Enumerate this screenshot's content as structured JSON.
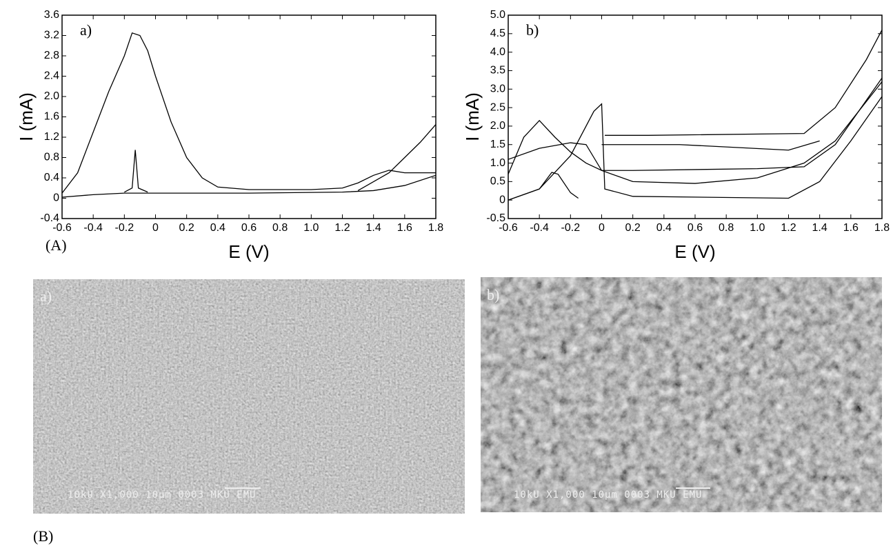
{
  "figure_labels": [
    "(A)",
    "(B)"
  ],
  "chart_data": [
    {
      "type": "line",
      "panel_label": "a)",
      "xlabel": "E (V)",
      "ylabel": "I (mA)",
      "color": "#000000",
      "grid": false,
      "xlim": [
        -0.6,
        1.8
      ],
      "ylim": [
        -0.4,
        3.6
      ],
      "xticks": [
        -0.6,
        -0.4,
        -0.2,
        0,
        0.2,
        0.4,
        0.6,
        0.8,
        {
          "value": 1,
          "label": "1.0"
        },
        1.2,
        1.4,
        1.6,
        1.8
      ],
      "yticks": [
        -0.4,
        0,
        0.4,
        0.8,
        1.2,
        1.6,
        {
          "value": 2,
          "label": "2.0"
        },
        2.4,
        2.8,
        3.2,
        3.6
      ],
      "series": [
        {
          "x": [
            -0.6,
            -0.5,
            -0.4,
            -0.3,
            -0.2,
            -0.15,
            -0.1,
            -0.05,
            0,
            0.1,
            0.2,
            0.3,
            0.4,
            0.6,
            1.0,
            1.2,
            1.3,
            1.4,
            1.5,
            1.6,
            1.7,
            1.8
          ],
          "values": [
            0.1,
            0.5,
            1.3,
            2.1,
            2.8,
            3.25,
            3.2,
            2.9,
            2.4,
            1.5,
            0.8,
            0.4,
            0.22,
            0.17,
            0.17,
            0.2,
            0.3,
            0.45,
            0.55,
            0.5,
            0.5,
            0.5
          ]
        },
        {
          "x": [
            -0.6,
            -0.4,
            -0.2,
            0,
            0.6,
            1.2,
            1.4,
            1.6,
            1.8
          ],
          "values": [
            0.02,
            0.07,
            0.1,
            0.1,
            0.1,
            0.12,
            0.15,
            0.25,
            0.45
          ]
        },
        {
          "x": [
            -0.2,
            -0.15,
            -0.13,
            -0.11,
            -0.05
          ],
          "values": [
            0.12,
            0.2,
            0.95,
            0.2,
            0.12
          ]
        },
        {
          "x": [
            1.3,
            1.5,
            1.6,
            1.7,
            1.8
          ],
          "values": [
            0.15,
            0.5,
            0.8,
            1.1,
            1.45
          ]
        }
      ]
    },
    {
      "type": "line",
      "panel_label": "b)",
      "xlabel": "E (V)",
      "ylabel": "I (mA)",
      "color": "#000000",
      "grid": false,
      "xlim": [
        -0.6,
        1.8
      ],
      "ylim": [
        -0.5,
        5
      ],
      "xticks": [
        -0.6,
        -0.4,
        -0.2,
        0,
        0.2,
        0.4,
        0.6,
        0.8,
        {
          "value": 1,
          "label": "1.0"
        },
        1.2,
        1.4,
        1.6,
        1.8
      ],
      "yticks": [
        -0.5,
        0,
        0.5,
        {
          "value": 1,
          "label": "1.0"
        },
        1.5,
        {
          "value": 2,
          "label": "2.0"
        },
        2.5,
        {
          "value": 3,
          "label": "3.0"
        },
        3.5,
        {
          "value": 4,
          "label": "4.0"
        },
        4.5,
        {
          "value": 5,
          "label": "5.0"
        }
      ],
      "series": [
        {
          "x": [
            -0.6,
            -0.5,
            -0.4,
            -0.3,
            -0.2,
            -0.1,
            0,
            0.2,
            1.0,
            1.3,
            1.5,
            1.8
          ],
          "values": [
            0.7,
            1.7,
            2.15,
            1.7,
            1.3,
            1.0,
            0.8,
            0.8,
            0.85,
            0.9,
            1.5,
            3.3
          ]
        },
        {
          "x": [
            -0.6,
            -0.4,
            -0.2,
            -0.05,
            0,
            0.02,
            0.2,
            1.2,
            1.4,
            1.6,
            1.8
          ],
          "values": [
            0,
            0.3,
            1.2,
            2.4,
            2.6,
            0.3,
            0.1,
            0.05,
            0.5,
            1.6,
            2.8
          ]
        },
        {
          "x": [
            0.02,
            0.3,
            1.3,
            1.5,
            1.7,
            1.8
          ],
          "values": [
            1.75,
            1.75,
            1.8,
            2.5,
            3.8,
            4.6
          ]
        },
        {
          "x": [
            0,
            0.5,
            1.2,
            1.4
          ],
          "values": [
            1.5,
            1.5,
            1.35,
            1.6
          ]
        },
        {
          "x": [
            -0.6,
            -0.4,
            -0.32,
            -0.28,
            -0.2,
            -0.15
          ],
          "values": [
            0,
            0.3,
            0.75,
            0.7,
            0.2,
            0.05
          ]
        },
        {
          "x": [
            -0.6,
            -0.4,
            -0.2,
            -0.1,
            0,
            0.2,
            0.6,
            1.0,
            1.3,
            1.5,
            1.8
          ],
          "values": [
            1.1,
            1.4,
            1.55,
            1.5,
            0.8,
            0.5,
            0.45,
            0.6,
            1.0,
            1.6,
            3.2
          ]
        }
      ]
    }
  ],
  "images": [
    {
      "label": "a)",
      "caption": "10kU  X1,000  10µm 0003 MKU EMU"
    },
    {
      "label": "b)",
      "caption": "10kU  X1,000  10µm 0003 MKU EMU"
    }
  ]
}
